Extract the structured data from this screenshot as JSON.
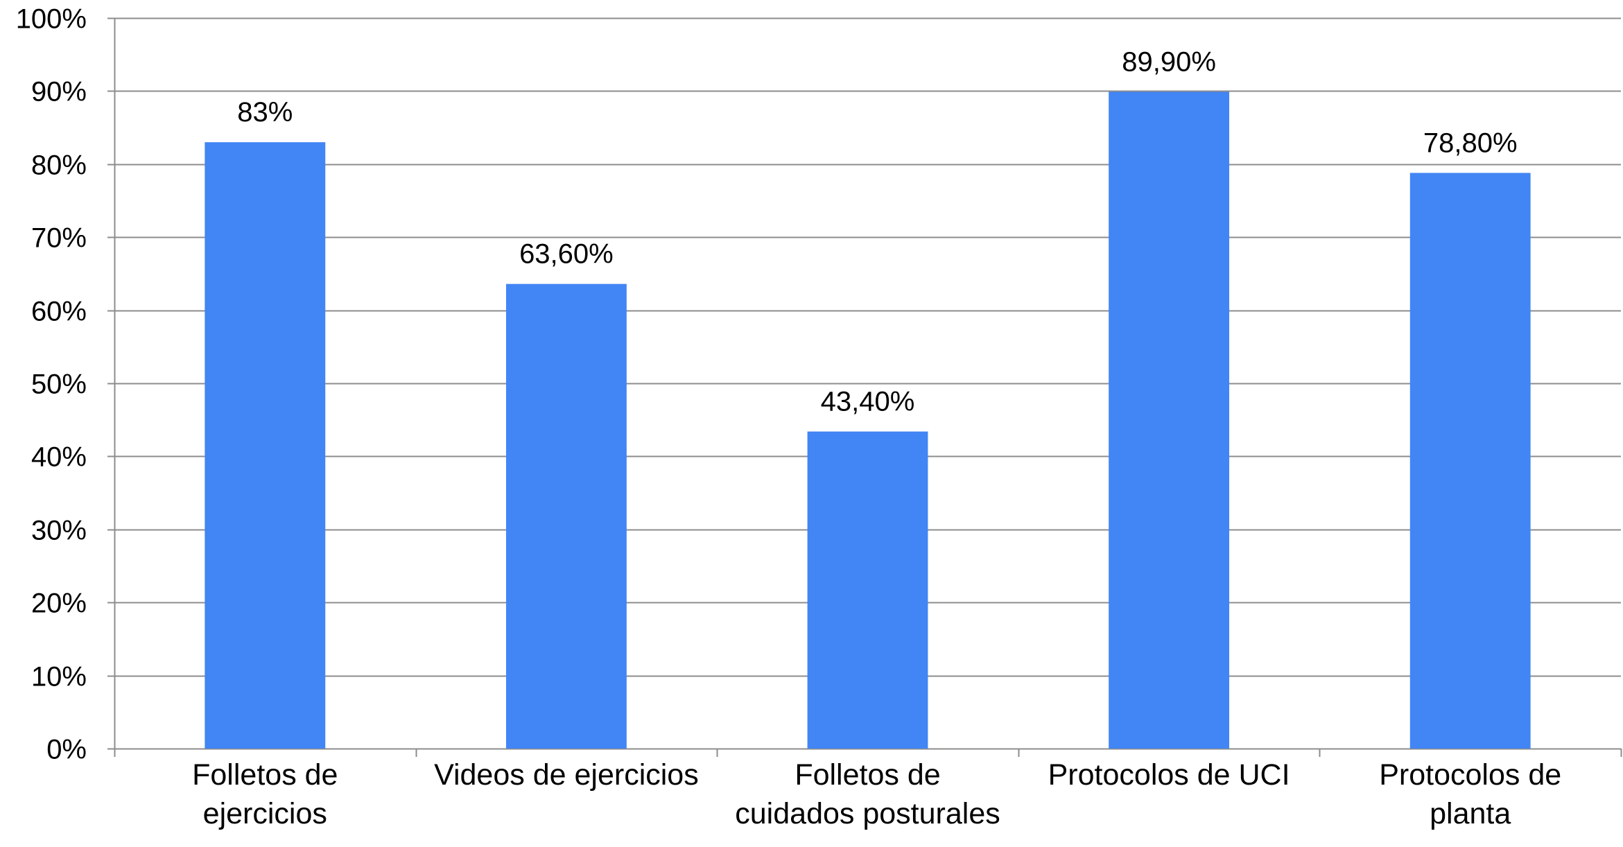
{
  "chart_data": {
    "type": "bar",
    "title": "",
    "xlabel": "",
    "ylabel": "",
    "ylim": [
      0,
      100
    ],
    "yticks": [
      0,
      10,
      20,
      30,
      40,
      50,
      60,
      70,
      80,
      90,
      100
    ],
    "ytick_labels": [
      "0%",
      "10%",
      "20%",
      "30%",
      "40%",
      "50%",
      "60%",
      "70%",
      "80%",
      "90%",
      "100%"
    ],
    "grid": true,
    "legend": "none",
    "bar_color": "#4285f4",
    "categories": [
      [
        "Folletos de",
        "ejercicios"
      ],
      [
        "Videos de ejercicios"
      ],
      [
        "Folletos de",
        "cuidados posturales"
      ],
      [
        "Protocolos de UCI"
      ],
      [
        "Protocolos de",
        "planta"
      ]
    ],
    "values": [
      83,
      63.6,
      43.4,
      89.9,
      78.8
    ],
    "data_labels": [
      "83%",
      "63,60%",
      "43,40%",
      "89,90%",
      "78,80%"
    ]
  }
}
